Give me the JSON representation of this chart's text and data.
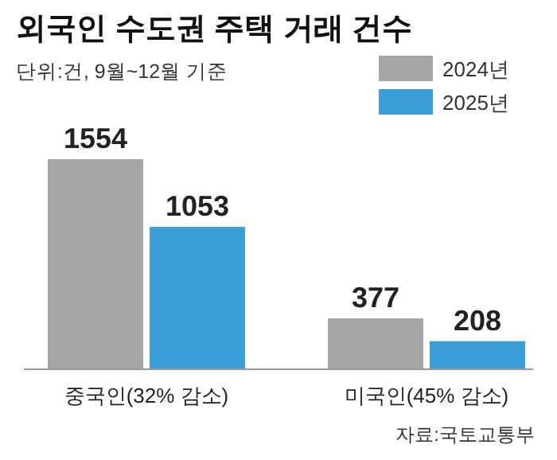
{
  "chart_data": {
    "type": "bar",
    "title": "외국인 수도권 주택 거래 건수",
    "subtitle": "단위:건, 9월~12월 기준",
    "categories": [
      "중국인(32% 감소)",
      "미국인(45% 감소)"
    ],
    "series": [
      {
        "name": "2024년",
        "color": "#a6a6a6",
        "values": [
          1554,
          377
        ]
      },
      {
        "name": "2025년",
        "color": "#3a9fd6",
        "values": [
          1053,
          208
        ]
      }
    ],
    "data_labels": true,
    "legend": "top right",
    "grid": false,
    "annotations": [
      "자료:국토교통부"
    ]
  }
}
